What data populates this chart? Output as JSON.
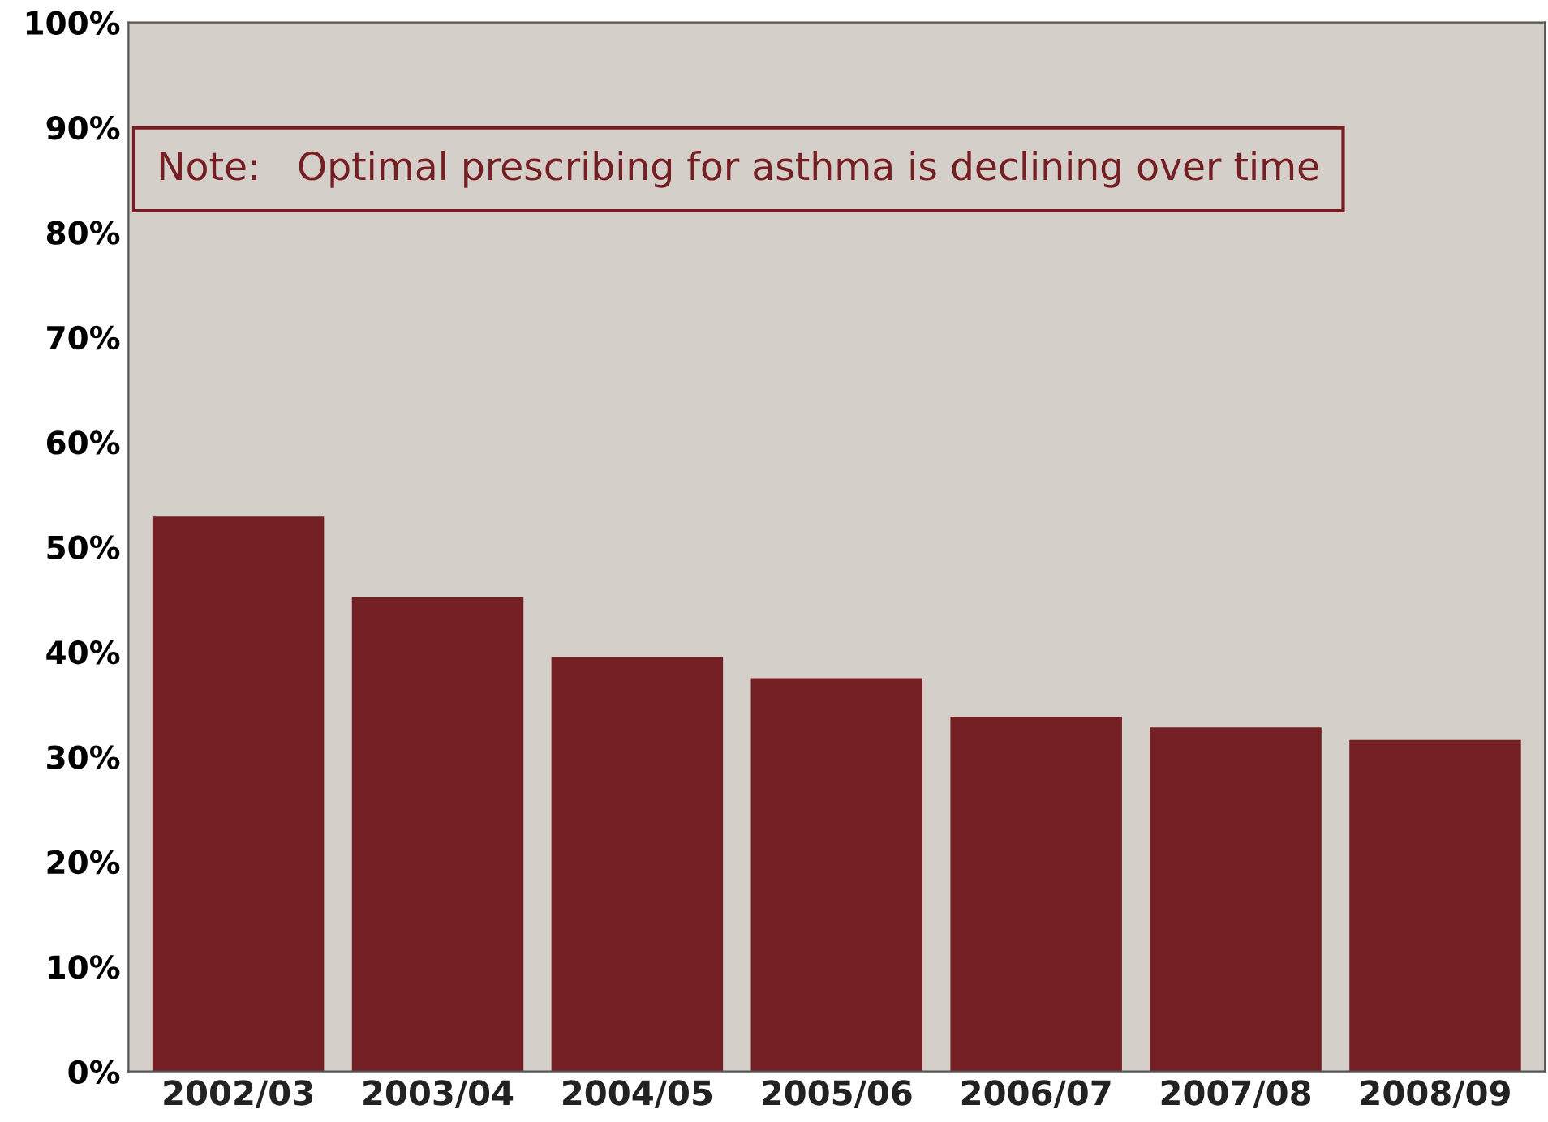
{
  "chart_data": {
    "type": "bar",
    "categories": [
      "2002/03",
      "2003/04",
      "2004/05",
      "2005/06",
      "2006/07",
      "2007/08",
      "2008/09"
    ],
    "values": [
      52.9,
      45.2,
      39.5,
      37.5,
      33.8,
      32.8,
      31.6
    ],
    "color": "#741f23",
    "ylim": [
      0,
      100
    ],
    "yticks": [
      {
        "value": 0,
        "label": "0%"
      },
      {
        "value": 10,
        "label": "10%"
      },
      {
        "value": 20,
        "label": "20%"
      },
      {
        "value": 30,
        "label": "30%"
      },
      {
        "value": 40,
        "label": "40%"
      },
      {
        "value": 50,
        "label": "50%"
      },
      {
        "value": 60,
        "label": "60%"
      },
      {
        "value": 70,
        "label": "70%"
      },
      {
        "value": 80,
        "label": "80%"
      },
      {
        "value": 90,
        "label": "90%"
      },
      {
        "value": 100,
        "label": "100%"
      }
    ],
    "grid": false,
    "annotations": [
      "Note:   Optimal prescribing for asthma is declining over time"
    ]
  }
}
